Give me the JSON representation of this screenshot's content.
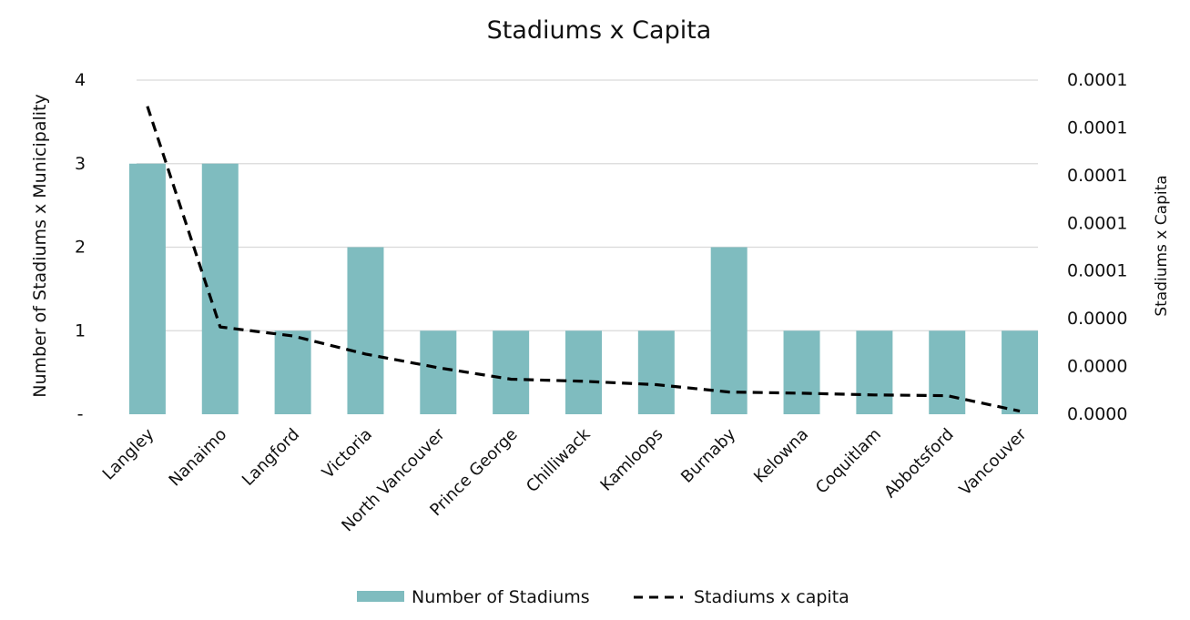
{
  "chart_data": {
    "type": "bar",
    "title": "Stadiums x Capita",
    "categories": [
      "Langley",
      "Nanaimo",
      "Langford",
      "Victoria",
      "North Vancouver",
      "Prince George",
      "Chilliwack",
      "Kamloops",
      "Burnaby",
      "Kelowna",
      "Coquitlam",
      "Abbotsford",
      "Vancouver"
    ],
    "series": [
      {
        "name": "Number of Stadiums",
        "type": "bar",
        "axis": "left",
        "color": "#7fbcbf",
        "values": [
          3,
          3,
          1,
          2,
          1,
          1,
          1,
          1,
          2,
          1,
          1,
          1,
          1
        ]
      },
      {
        "name": "Stadiums x capita",
        "type": "line",
        "axis": "right",
        "color": "#000000",
        "line_style": "dashed",
        "values": [
          0.000129,
          3.66e-05,
          3.28e-05,
          2.52e-05,
          1.95e-05,
          1.47e-05,
          1.38e-05,
          1.24e-05,
          9.3e-06,
          8.8e-06,
          8.1e-06,
          7.8e-06,
          1.3e-06
        ]
      }
    ],
    "ylabel": "Number of Stadiums x Municipality",
    "ylim": [
      0,
      4
    ],
    "yticks": [
      {
        "value": 0,
        "label": "-"
      },
      {
        "value": 1,
        "label": "1"
      },
      {
        "value": 2,
        "label": "2"
      },
      {
        "value": 3,
        "label": "3"
      },
      {
        "value": 4,
        "label": "4"
      }
    ],
    "y2label": "Stadiums x Capita",
    "y2lim": [
      0,
      0.00014
    ],
    "y2ticks": [
      {
        "value": 0,
        "label": "0.0000"
      },
      {
        "value": 2e-05,
        "label": "0.0000"
      },
      {
        "value": 4e-05,
        "label": "0.0000"
      },
      {
        "value": 6e-05,
        "label": "0.0001"
      },
      {
        "value": 8e-05,
        "label": "0.0001"
      },
      {
        "value": 0.0001,
        "label": "0.0001"
      },
      {
        "value": 0.00012,
        "label": "0.0001"
      },
      {
        "value": 0.00014,
        "label": "0.0001"
      }
    ],
    "grid": true,
    "legend": "bottom"
  }
}
